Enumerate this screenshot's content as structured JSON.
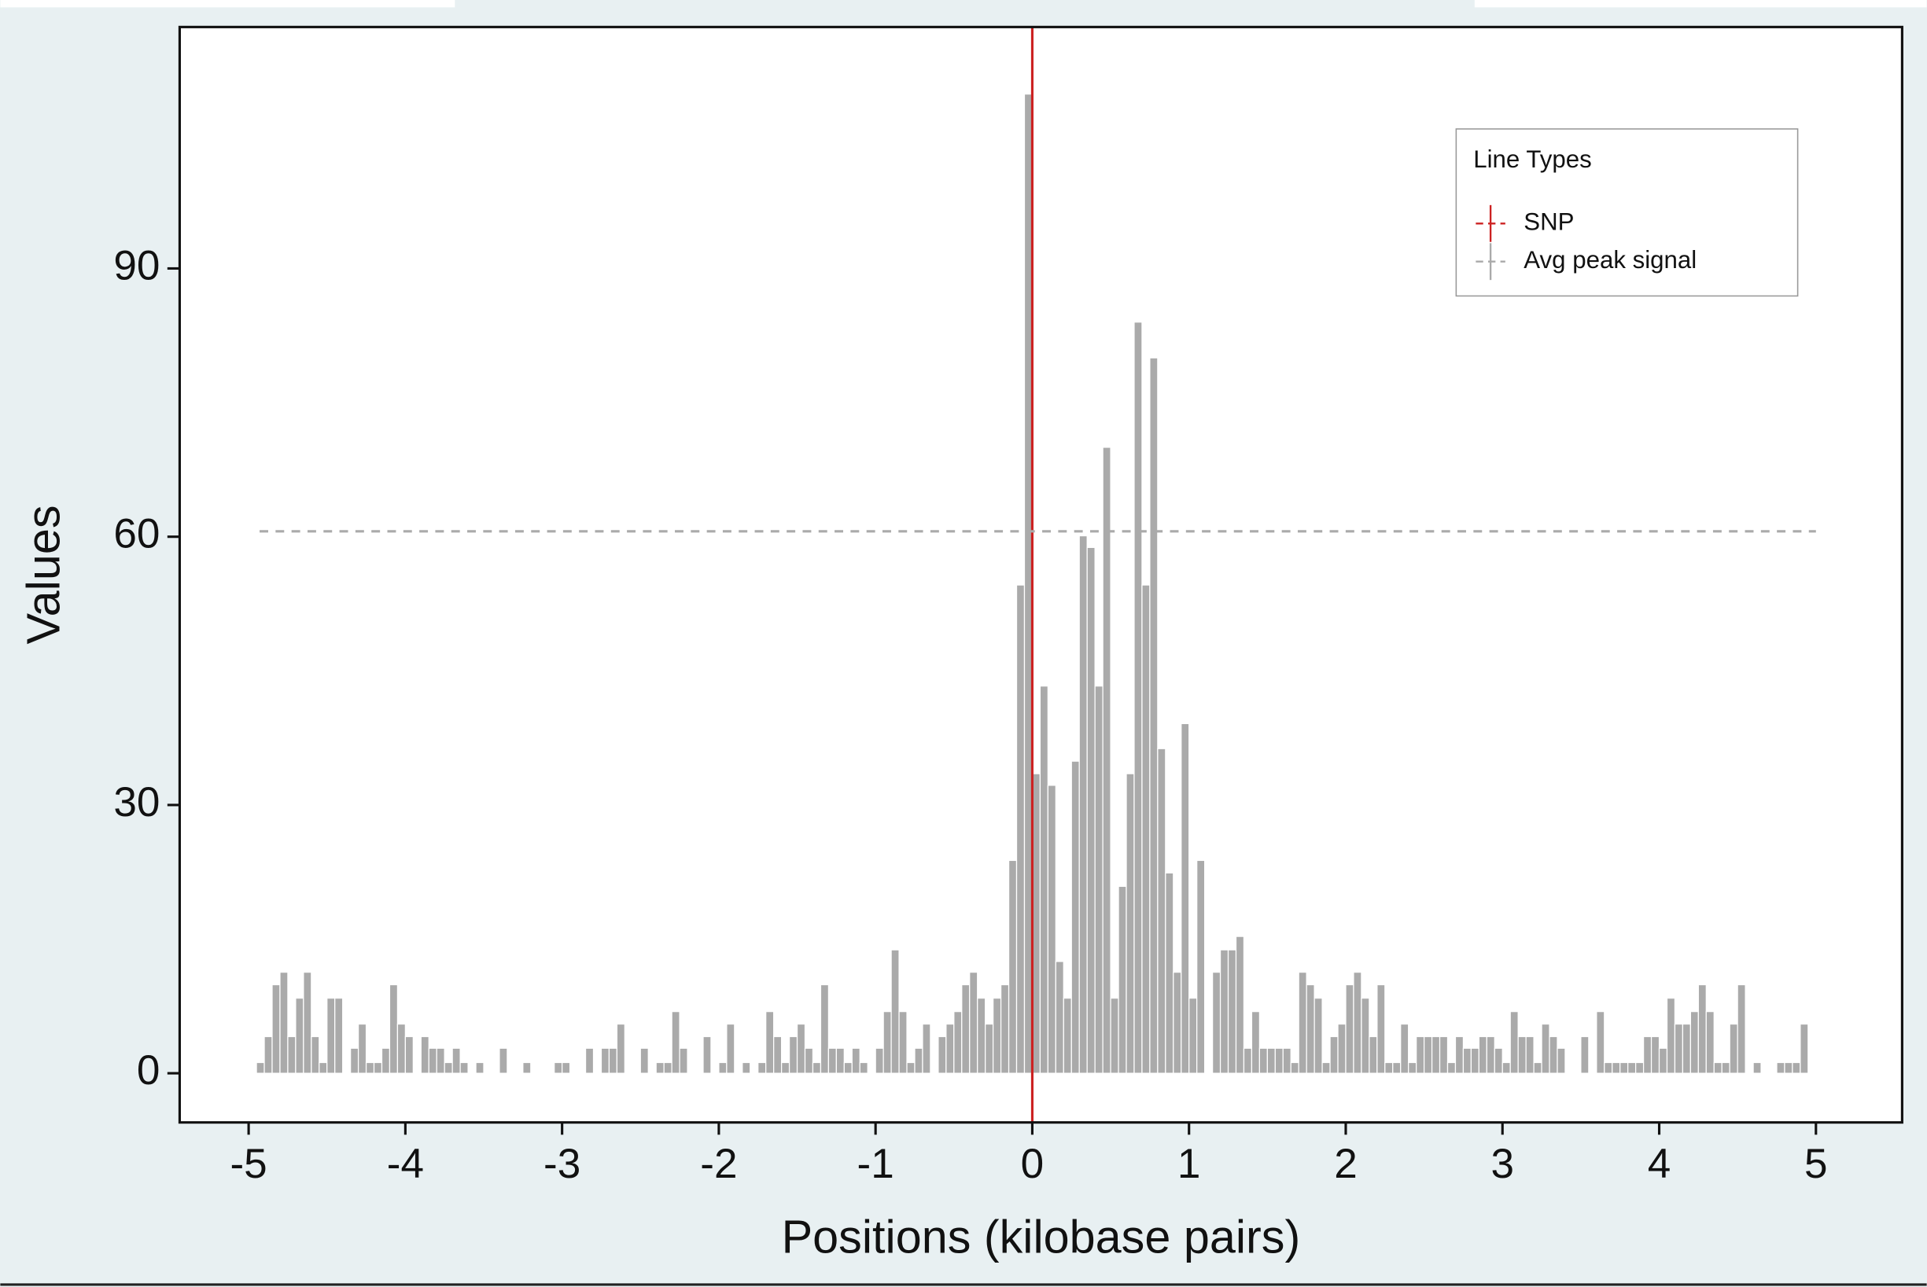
{
  "chart_data": {
    "type": "histogram",
    "xlabel": "Positions (kilobase pairs)",
    "ylabel": "Values",
    "bins": [
      -5,
      -4.95,
      -4.9,
      -4.85,
      -4.8,
      -4.75,
      -4.7,
      -4.65,
      -4.6,
      -4.55,
      -4.5,
      -4.45,
      -4.4,
      -4.35,
      -4.3,
      -4.25,
      -4.2,
      -4.15,
      -4.1,
      -4.05,
      -4,
      -3.95,
      -3.9,
      -3.85,
      -3.8,
      -3.75,
      -3.7,
      -3.65,
      -3.6,
      -3.55,
      -3.5,
      -3.45,
      -3.4,
      -3.35,
      -3.3,
      -3.25,
      -3.2,
      -3.15,
      -3.1,
      -3.05,
      -3,
      -2.95,
      -2.9,
      -2.85,
      -2.8,
      -2.75,
      -2.7,
      -2.65,
      -2.6,
      -2.55,
      -2.5,
      -2.45,
      -2.4,
      -2.35,
      -2.3,
      -2.25,
      -2.2,
      -2.15,
      -2.1,
      -2.05,
      -2,
      -1.95,
      -1.9,
      -1.85,
      -1.8,
      -1.75,
      -1.7,
      -1.65,
      -1.6,
      -1.55,
      -1.5,
      -1.45,
      -1.4,
      -1.35,
      -1.3,
      -1.25,
      -1.2,
      -1.15,
      -1.1,
      -1.05,
      -1,
      -0.95,
      -0.9,
      -0.85,
      -0.8,
      -0.75,
      -0.7,
      -0.65,
      -0.6,
      -0.55,
      -0.5,
      -0.45,
      -0.4,
      -0.35,
      -0.3,
      -0.25,
      -0.2,
      -0.15,
      -0.1,
      -0.05,
      0,
      0.05,
      0.1,
      0.15,
      0.2,
      0.25,
      0.3,
      0.35,
      0.4,
      0.45,
      0.5,
      0.55,
      0.6,
      0.65,
      0.7,
      0.75,
      0.8,
      0.85,
      0.9,
      0.95,
      1,
      1.05,
      1.1,
      1.15,
      1.2,
      1.25,
      1.3,
      1.35,
      1.4,
      1.45,
      1.5,
      1.55,
      1.6,
      1.65,
      1.7,
      1.75,
      1.8,
      1.85,
      1.9,
      1.95,
      2,
      2.05,
      2.1,
      2.15,
      2.2,
      2.25,
      2.3,
      2.35,
      2.4,
      2.45,
      2.5,
      2.55,
      2.6,
      2.65,
      2.7,
      2.75,
      2.8,
      2.85,
      2.9,
      2.95,
      3,
      3.05,
      3.1,
      3.15,
      3.2,
      3.25,
      3.3,
      3.35,
      3.4,
      3.45,
      3.5,
      3.55,
      3.6,
      3.65,
      3.7,
      3.75,
      3.8,
      3.85,
      3.9,
      3.95,
      4,
      4.05,
      4.1,
      4.15,
      4.2,
      4.25,
      4.3,
      4.35,
      4.4,
      4.45,
      4.5,
      4.55,
      4.6,
      4.65,
      4.7,
      4.75,
      4.8,
      4.85,
      4.9,
      4.95,
      5
    ],
    "values": [
      0,
      1.2,
      4.1,
      9.9,
      11.3,
      4.1,
      8.4,
      11.3,
      4.1,
      1.2,
      8.4,
      8.4,
      0,
      2.8,
      5.5,
      1.2,
      1.2,
      2.8,
      9.9,
      5.5,
      4.1,
      0,
      4.1,
      2.8,
      2.8,
      1.2,
      2.8,
      1.2,
      0,
      1.2,
      0,
      0,
      2.8,
      0,
      0,
      1.2,
      0,
      0,
      0,
      1.2,
      1.2,
      0,
      0,
      2.8,
      0,
      2.8,
      2.8,
      5.5,
      0,
      0,
      2.8,
      0,
      1.2,
      1.2,
      6.9,
      2.8,
      0,
      0,
      4.1,
      0,
      1.2,
      5.5,
      0,
      1.2,
      0,
      1.2,
      6.9,
      4.1,
      1.2,
      4.1,
      5.5,
      2.8,
      1.2,
      9.9,
      2.8,
      2.8,
      1.2,
      2.8,
      1.2,
      0,
      2.8,
      6.9,
      13.8,
      6.9,
      1.2,
      2.8,
      5.5,
      0,
      4.1,
      5.5,
      6.9,
      9.9,
      11.3,
      8.4,
      5.5,
      8.4,
      9.9,
      23.8,
      54.6,
      109.5,
      33.5,
      43.3,
      32.2,
      12.5,
      8.4,
      34.9,
      60.1,
      58.8,
      43.3,
      70.0,
      8.4,
      20.9,
      33.5,
      84.0,
      54.6,
      80.0,
      36.3,
      22.4,
      11.3,
      39.1,
      8.4,
      23.8,
      0,
      11.3,
      13.8,
      13.8,
      15.3,
      2.8,
      6.9,
      2.8,
      2.8,
      2.8,
      2.8,
      1.2,
      11.3,
      9.9,
      8.4,
      1.2,
      4.1,
      5.5,
      9.9,
      11.3,
      8.4,
      4.1,
      9.9,
      1.2,
      1.2,
      5.5,
      1.2,
      4.1,
      4.1,
      4.1,
      4.1,
      1.2,
      4.1,
      2.8,
      2.8,
      4.1,
      4.1,
      2.8,
      1.2,
      6.9,
      4.1,
      4.1,
      1.2,
      5.5,
      4.1,
      2.8,
      0,
      0,
      4.1,
      0,
      6.9,
      1.2,
      1.2,
      1.2,
      1.2,
      1.2,
      4.1,
      4.1,
      2.8,
      8.4,
      5.5,
      5.5,
      6.9,
      9.9,
      6.9,
      1.2,
      1.2,
      5.5,
      9.9,
      0,
      1.2,
      0,
      0,
      1.2,
      1.2,
      1.2,
      5.5,
      0
    ],
    "color": "#aaaaaa",
    "xlim": [
      -5.44,
      5.55
    ],
    "xticks": [
      -5,
      -4,
      -3,
      -2,
      -1,
      0,
      1,
      2,
      3,
      4,
      5
    ],
    "ylim": [
      -5.5,
      117
    ],
    "yticks": [
      0,
      30,
      60,
      90
    ],
    "legend_title": "Line Types",
    "legend": "top right",
    "lines": [
      {
        "name": "SNP",
        "color": "#cc2222",
        "x": 0,
        "dashed": false
      },
      {
        "name": "Avg peak signal",
        "color": "#aaaaaa",
        "y": 60.6,
        "xrange": [
          -4.93,
          5
        ],
        "dashed": true
      }
    ]
  }
}
